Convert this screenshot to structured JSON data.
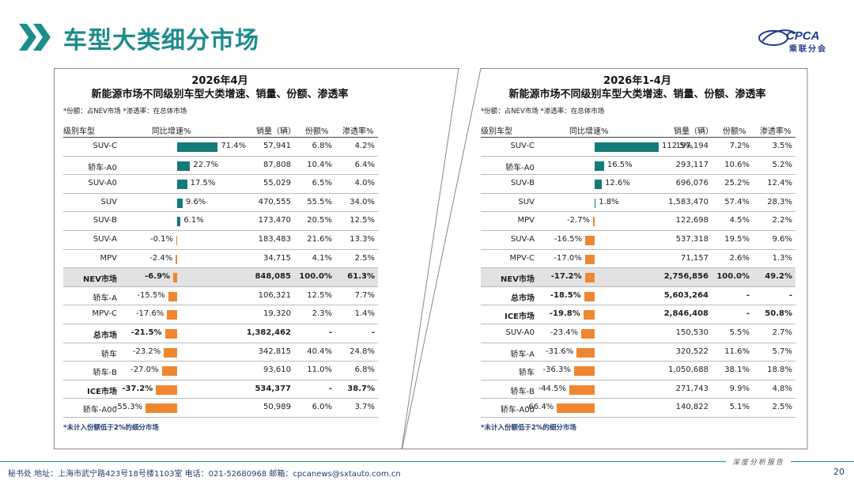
{
  "header": {
    "title": "车型大类细分市场",
    "logo_text": "CPCA",
    "logo_sub": "乘联分会"
  },
  "colors": {
    "accent": "#1e8c8c",
    "positive_bar": "#147a7a",
    "negative_bar": "#ef8731"
  },
  "headers": {
    "name": "级别车型",
    "growth": "同比增速%",
    "sales": "销量（辆）",
    "share": "份额%",
    "penetration": "渗透率%"
  },
  "left": {
    "title_line1": "2026年4月",
    "title_line2": "新能源市场不同级别车型大类增速、销量、份额、渗透率",
    "note": "*份额：占NEV市场   *渗透率：在总体市场",
    "footnote": "*未计入份额低于2%的细分市场",
    "rows": [
      {
        "name": "SUV-C",
        "growth": 71.4,
        "growth_label": "71.4%",
        "sales": "57,941",
        "share": "6.8%",
        "penetration": "4.2%",
        "style": ""
      },
      {
        "name": "轿车-A0",
        "growth": 22.7,
        "growth_label": "22.7%",
        "sales": "87,808",
        "share": "10.4%",
        "penetration": "6.4%",
        "style": ""
      },
      {
        "name": "SUV-A0",
        "growth": 17.5,
        "growth_label": "17.5%",
        "sales": "55,029",
        "share": "6.5%",
        "penetration": "4.0%",
        "style": ""
      },
      {
        "name": "SUV",
        "growth": 9.6,
        "growth_label": "9.6%",
        "sales": "470,555",
        "share": "55.5%",
        "penetration": "34.0%",
        "style": ""
      },
      {
        "name": "SUV-B",
        "growth": 6.1,
        "growth_label": "6.1%",
        "sales": "173,470",
        "share": "20.5%",
        "penetration": "12.5%",
        "style": ""
      },
      {
        "name": "SUV-A",
        "growth": -0.1,
        "growth_label": "-0.1%",
        "sales": "183,483",
        "share": "21.6%",
        "penetration": "13.3%",
        "style": ""
      },
      {
        "name": "MPV",
        "growth": -2.4,
        "growth_label": "-2.4%",
        "sales": "34,715",
        "share": "4.1%",
        "penetration": "2.5%",
        "style": ""
      },
      {
        "name": "NEV市场",
        "growth": -6.9,
        "growth_label": "-6.9%",
        "sales": "848,085",
        "share": "100.0%",
        "penetration": "61.3%",
        "style": "hl"
      },
      {
        "name": "轿车-A",
        "growth": -15.5,
        "growth_label": "-15.5%",
        "sales": "106,321",
        "share": "12.5%",
        "penetration": "7.7%",
        "style": ""
      },
      {
        "name": "MPV-C",
        "growth": -17.6,
        "growth_label": "-17.6%",
        "sales": "19,320",
        "share": "2.3%",
        "penetration": "1.4%",
        "style": ""
      },
      {
        "name": "总市场",
        "growth": -21.5,
        "growth_label": "-21.5%",
        "sales": "1,382,462",
        "share": "-",
        "penetration": "-",
        "style": "bold"
      },
      {
        "name": "轿车",
        "growth": -23.2,
        "growth_label": "-23.2%",
        "sales": "342,815",
        "share": "40.4%",
        "penetration": "24.8%",
        "style": ""
      },
      {
        "name": "轿车-B",
        "growth": -27.0,
        "growth_label": "-27.0%",
        "sales": "93,610",
        "share": "11.0%",
        "penetration": "6.8%",
        "style": ""
      },
      {
        "name": "ICE市场",
        "growth": -37.2,
        "growth_label": "-37.2%",
        "sales": "534,377",
        "share": "-",
        "penetration": "38.7%",
        "style": "bold"
      },
      {
        "name": "轿车-A00",
        "growth": -55.3,
        "growth_label": "-55.3%",
        "sales": "50,989",
        "share": "6.0%",
        "penetration": "3.7%",
        "style": ""
      }
    ]
  },
  "right": {
    "title_line1": "2026年1-4月",
    "title_line2": "新能源市场不同级别车型大类增速、销量、份额、渗透率",
    "note": "*份额：占NEV市场   *渗透率：在总体市场",
    "footnote": "*未计入份额低于2%的细分市场",
    "rows": [
      {
        "name": "SUV-C",
        "growth": 112.5,
        "growth_label": "112.5%",
        "sales": "197,194",
        "share": "7.2%",
        "penetration": "3.5%",
        "style": ""
      },
      {
        "name": "轿车-A0",
        "growth": 16.5,
        "growth_label": "16.5%",
        "sales": "293,117",
        "share": "10.6%",
        "penetration": "5.2%",
        "style": ""
      },
      {
        "name": "SUV-B",
        "growth": 12.6,
        "growth_label": "12.6%",
        "sales": "696,076",
        "share": "25.2%",
        "penetration": "12.4%",
        "style": ""
      },
      {
        "name": "SUV",
        "growth": 1.8,
        "growth_label": "1.8%",
        "sales": "1,583,470",
        "share": "57.4%",
        "penetration": "28.3%",
        "style": ""
      },
      {
        "name": "MPV",
        "growth": -2.7,
        "growth_label": "-2.7%",
        "sales": "122,698",
        "share": "4.5%",
        "penetration": "2.2%",
        "style": ""
      },
      {
        "name": "SUV-A",
        "growth": -16.5,
        "growth_label": "-16.5%",
        "sales": "537,318",
        "share": "19.5%",
        "penetration": "9.6%",
        "style": ""
      },
      {
        "name": "MPV-C",
        "growth": -17.0,
        "growth_label": "-17.0%",
        "sales": "71,157",
        "share": "2.6%",
        "penetration": "1.3%",
        "style": ""
      },
      {
        "name": "NEV市场",
        "growth": -17.2,
        "growth_label": "-17.2%",
        "sales": "2,756,856",
        "share": "100.0%",
        "penetration": "49.2%",
        "style": "hl"
      },
      {
        "name": "总市场",
        "growth": -18.5,
        "growth_label": "-18.5%",
        "sales": "5,603,264",
        "share": "-",
        "penetration": "-",
        "style": "bold"
      },
      {
        "name": "ICE市场",
        "growth": -19.8,
        "growth_label": "-19.8%",
        "sales": "2,846,408",
        "share": "-",
        "penetration": "50.8%",
        "style": "bold"
      },
      {
        "name": "SUV-A0",
        "growth": -23.4,
        "growth_label": "-23.4%",
        "sales": "150,530",
        "share": "5.5%",
        "penetration": "2.7%",
        "style": ""
      },
      {
        "name": "轿车-A",
        "growth": -31.6,
        "growth_label": "-31.6%",
        "sales": "320,522",
        "share": "11.6%",
        "penetration": "5.7%",
        "style": ""
      },
      {
        "name": "轿车",
        "growth": -36.3,
        "growth_label": "-36.3%",
        "sales": "1,050,688",
        "share": "38.1%",
        "penetration": "18.8%",
        "style": ""
      },
      {
        "name": "轿车-B",
        "growth": -44.5,
        "growth_label": "-44.5%",
        "sales": "271,743",
        "share": "9.9%",
        "penetration": "4.8%",
        "style": ""
      },
      {
        "name": "轿车-A00",
        "growth": -66.4,
        "growth_label": "-66.4%",
        "sales": "140,822",
        "share": "5.1%",
        "penetration": "2.5%",
        "style": ""
      }
    ]
  },
  "footer": {
    "contact": "秘书处   地址：上海市武宁路423号18号楼1103室  电话：021-52680968   邮箱：cpcanews@sxtauto.com.cn",
    "tag": "深度分析报告",
    "page": "20"
  }
}
